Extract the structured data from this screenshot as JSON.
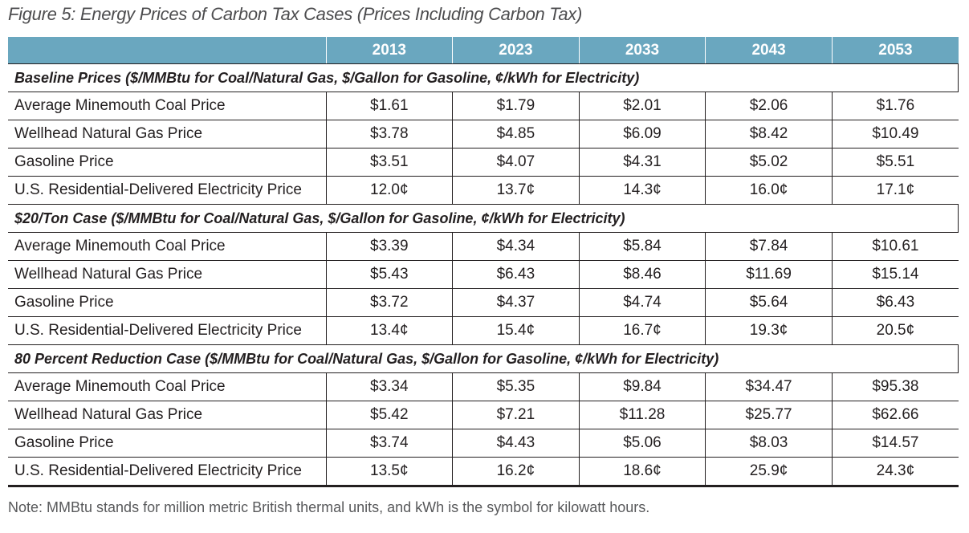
{
  "title": "Figure 5: Energy Prices of Carbon Tax Cases (Prices Including Carbon Tax)",
  "years": [
    "2013",
    "2023",
    "2033",
    "2043",
    "2053"
  ],
  "sections": [
    {
      "heading": "Baseline Prices ($/MMBtu for Coal/Natural Gas, $/Gallon for Gasoline, ¢/kWh for Electricity)",
      "rows": [
        {
          "label": "Average Minemouth Coal Price",
          "values": [
            "$1.61",
            "$1.79",
            "$2.01",
            "$2.06",
            "$1.76"
          ]
        },
        {
          "label": "Wellhead Natural Gas Price",
          "values": [
            "$3.78",
            "$4.85",
            "$6.09",
            "$8.42",
            "$10.49"
          ]
        },
        {
          "label": "Gasoline Price",
          "values": [
            "$3.51",
            "$4.07",
            "$4.31",
            "$5.02",
            "$5.51"
          ]
        },
        {
          "label": "U.S. Residential-Delivered Electricity Price",
          "values": [
            "12.0¢",
            "13.7¢",
            "14.3¢",
            "16.0¢",
            "17.1¢"
          ]
        }
      ]
    },
    {
      "heading": "$20/Ton Case ($/MMBtu for Coal/Natural Gas, $/Gallon for Gasoline, ¢/kWh for Electricity)",
      "rows": [
        {
          "label": "Average Minemouth Coal Price",
          "values": [
            "$3.39",
            "$4.34",
            "$5.84",
            "$7.84",
            "$10.61"
          ]
        },
        {
          "label": "Wellhead Natural Gas Price",
          "values": [
            "$5.43",
            "$6.43",
            "$8.46",
            "$11.69",
            "$15.14"
          ]
        },
        {
          "label": "Gasoline Price",
          "values": [
            "$3.72",
            "$4.37",
            "$4.74",
            "$5.64",
            "$6.43"
          ]
        },
        {
          "label": "U.S. Residential-Delivered Electricity Price",
          "values": [
            "13.4¢",
            "15.4¢",
            "16.7¢",
            "19.3¢",
            "20.5¢"
          ]
        }
      ]
    },
    {
      "heading": "80 Percent Reduction Case ($/MMBtu for Coal/Natural Gas, $/Gallon for Gasoline, ¢/kWh for Electricity)",
      "rows": [
        {
          "label": "Average Minemouth Coal Price",
          "values": [
            "$3.34",
            "$5.35",
            "$9.84",
            "$34.47",
            "$95.38"
          ]
        },
        {
          "label": "Wellhead Natural Gas Price",
          "values": [
            "$5.42",
            "$7.21",
            "$11.28",
            "$25.77",
            "$62.66"
          ]
        },
        {
          "label": "Gasoline Price",
          "values": [
            "$3.74",
            "$4.43",
            "$5.06",
            "$8.03",
            "$14.57"
          ]
        },
        {
          "label": "U.S. Residential-Delivered Electricity Price",
          "values": [
            "13.5¢",
            "16.2¢",
            "18.6¢",
            "25.9¢",
            "24.3¢"
          ]
        }
      ]
    }
  ],
  "note": "Note: MMBtu stands for million metric British thermal units, and kWh is the symbol for kilowatt hours.",
  "colors": {
    "header_bg": "#6aa7bf",
    "header_text": "#ffffff",
    "title_text": "#4d4d4f",
    "rule": "#231f20"
  }
}
